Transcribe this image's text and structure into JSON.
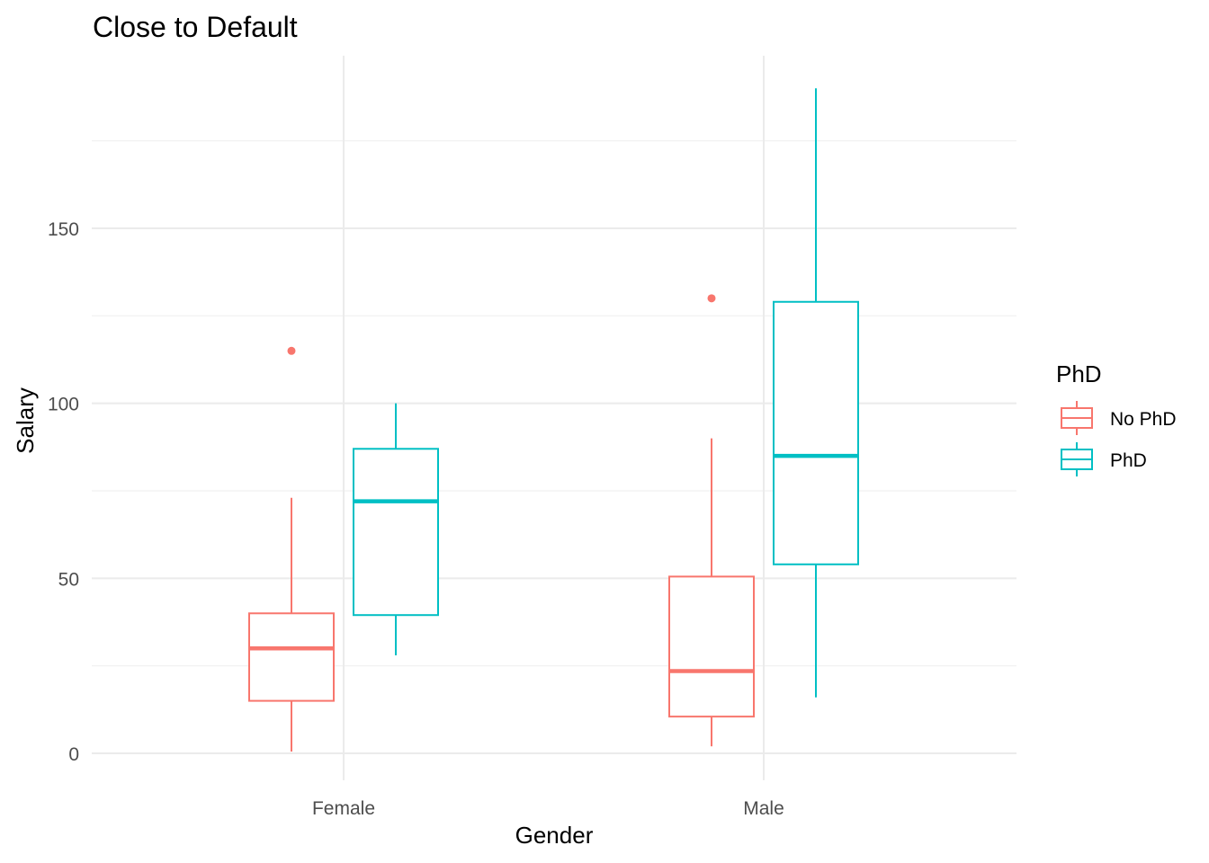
{
  "chart_data": {
    "type": "boxplot",
    "title": "Close to Default",
    "xlabel": "Gender",
    "ylabel": "Salary",
    "categories": [
      "Female",
      "Male"
    ],
    "ylim": [
      -8,
      200
    ],
    "yticks": [
      0,
      50,
      100,
      150
    ],
    "grid": true,
    "legend": {
      "title": "PhD",
      "placement": "right"
    },
    "series": [
      {
        "name": "No PhD",
        "color": "#F8766D",
        "boxes": [
          {
            "category": "Female",
            "min": 0.5,
            "q1": 15,
            "median": 30,
            "q3": 40,
            "max": 73,
            "outliers": [
              115
            ]
          },
          {
            "category": "Male",
            "min": 2,
            "q1": 10.5,
            "median": 23.5,
            "q3": 50.5,
            "max": 90,
            "outliers": [
              130
            ]
          }
        ]
      },
      {
        "name": "PhD",
        "color": "#00BFC4",
        "boxes": [
          {
            "category": "Female",
            "min": 28,
            "q1": 39.5,
            "median": 72,
            "q3": 87,
            "max": 100,
            "outliers": []
          },
          {
            "category": "Male",
            "min": 16,
            "q1": 54,
            "median": 85,
            "q3": 129,
            "max": 190,
            "outliers": []
          }
        ]
      }
    ]
  }
}
